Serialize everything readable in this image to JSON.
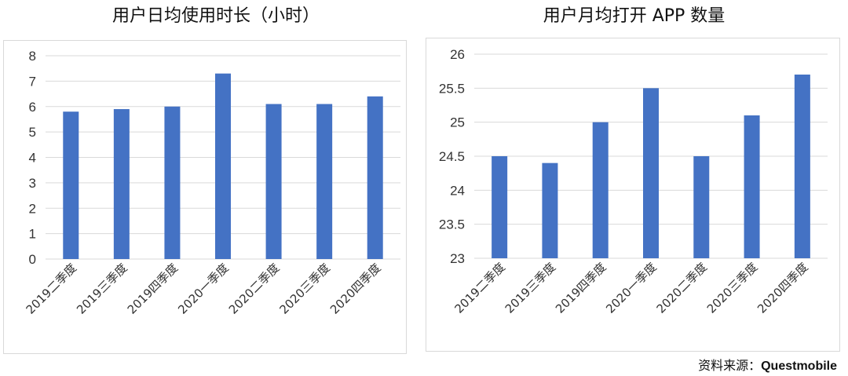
{
  "chart_data": [
    {
      "type": "bar",
      "title": "用户日均使用时长（小时）",
      "categories": [
        "2019二季度",
        "2019三季度",
        "2019四季度",
        "2020一季度",
        "2020二季度",
        "2020三季度",
        "2020四季度"
      ],
      "values": [
        5.8,
        5.9,
        6.0,
        7.3,
        6.1,
        6.1,
        6.4
      ],
      "ylim": [
        0,
        8
      ],
      "yticks": [
        "0",
        "1",
        "2",
        "3",
        "4",
        "5",
        "6",
        "7",
        "8"
      ],
      "bar_color": "#4472C4",
      "grid": true,
      "xlabel": "",
      "ylabel": ""
    },
    {
      "type": "bar",
      "title": "用户月均打开 APP 数量",
      "categories": [
        "2019二季度",
        "2019三季度",
        "2019四季度",
        "2020一季度",
        "2020二季度",
        "2020三季度",
        "2020四季度"
      ],
      "values": [
        24.5,
        24.4,
        25.0,
        25.5,
        24.5,
        25.1,
        25.7
      ],
      "ylim": [
        23,
        26
      ],
      "yticks": [
        "23",
        "23.5",
        "24",
        "24.5",
        "25",
        "25.5",
        "26"
      ],
      "bar_color": "#4472C4",
      "grid": true,
      "xlabel": "",
      "ylabel": ""
    }
  ],
  "source": {
    "prefix": "资料来源：",
    "name": "Questmobile"
  }
}
